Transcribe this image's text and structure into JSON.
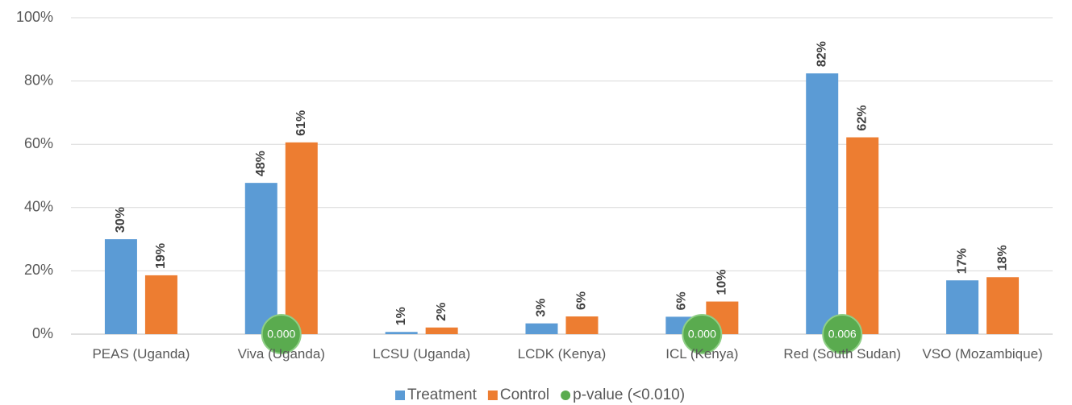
{
  "chart_data": {
    "type": "bar",
    "categories": [
      "PEAS (Uganda)",
      "Viva (Uganda)",
      "LCSU (Uganda)",
      "LCDK (Kenya)",
      "ICL (Kenya)",
      "Red (South Sudan)",
      "VSO (Mozambique)"
    ],
    "series": [
      {
        "name": "Treatment",
        "color": "#5b9bd5",
        "values": [
          30,
          47.8,
          0.7,
          3.4,
          5.5,
          82.4,
          17
        ],
        "value_labels": [
          "30%",
          "48%",
          "1%",
          "3%",
          "6%",
          "82%",
          "17%"
        ]
      },
      {
        "name": "Control",
        "color": "#ed7d31",
        "values": [
          18.6,
          60.6,
          2.1,
          5.6,
          10.3,
          62.2,
          18
        ],
        "value_labels": [
          "19%",
          "61%",
          "2%",
          "6%",
          "10%",
          "62%",
          "18%"
        ]
      }
    ],
    "markers": {
      "name": "p-value (<0.010)",
      "color": "#5aab4f",
      "values": [
        null,
        0.0,
        null,
        null,
        0.0,
        0.006,
        null
      ],
      "value_labels": [
        null,
        "0.000",
        null,
        null,
        "0.000",
        "0.006",
        null
      ]
    },
    "ylim": [
      0,
      100
    ],
    "yticks": [
      {
        "value": 0,
        "label": "0%"
      },
      {
        "value": 20,
        "label": "20%"
      },
      {
        "value": 40,
        "label": "40%"
      },
      {
        "value": 60,
        "label": "60%"
      },
      {
        "value": 80,
        "label": "80%"
      },
      {
        "value": 100,
        "label": "100%"
      }
    ],
    "grid": true,
    "legend": "bottom"
  }
}
